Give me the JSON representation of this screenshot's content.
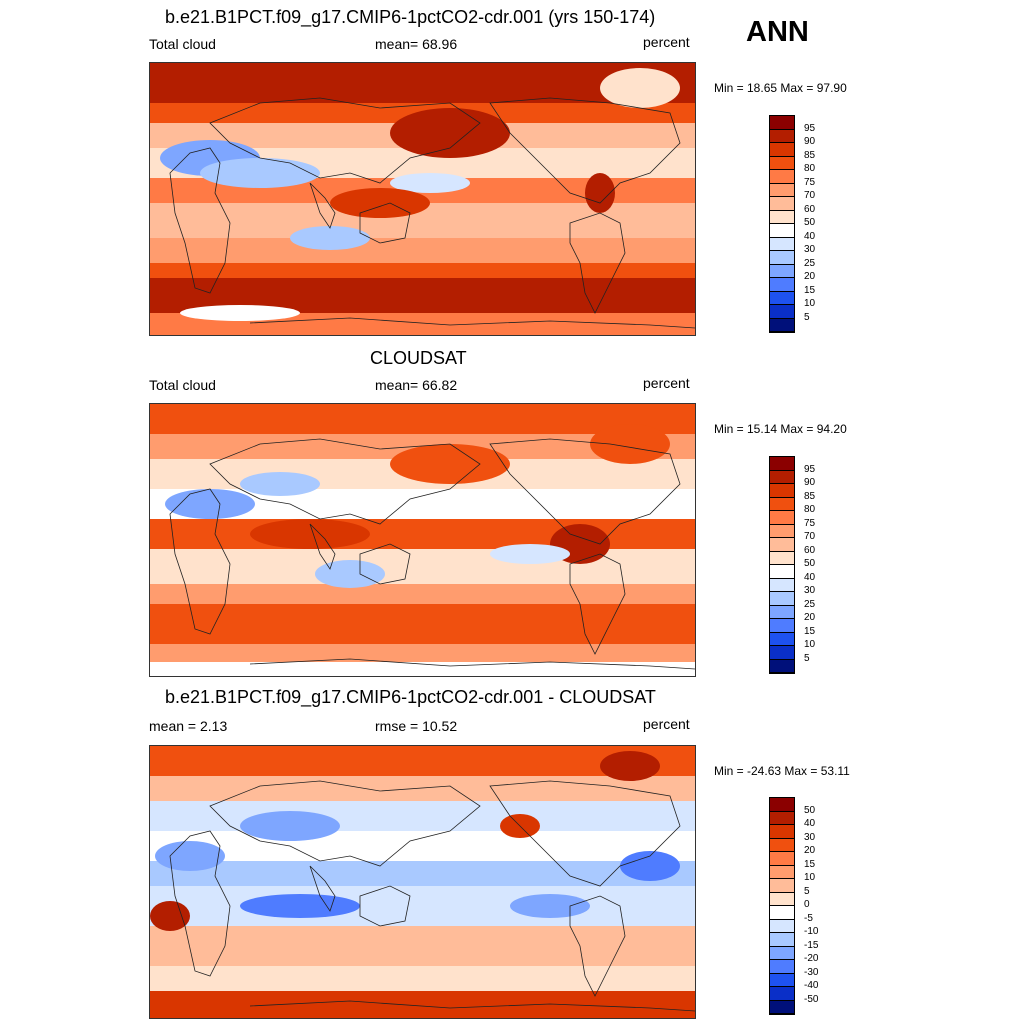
{
  "season": "ANN",
  "panels": [
    {
      "title": "b.e21.B1PCT.f09_g17.CMIP6-1pctCO2-cdr.001 (yrs 150-174)",
      "left_label": "Total cloud",
      "center_label": "mean=  68.96",
      "right_label": "percent",
      "minmax": "Min =  18.65 Max =  97.90",
      "colorbar": {
        "labels": [
          "95",
          "90",
          "85",
          "80",
          "75",
          "70",
          "60",
          "50",
          "40",
          "30",
          "25",
          "20",
          "15",
          "10",
          "5"
        ],
        "colors": [
          "#8b0000",
          "#b31e00",
          "#d93600",
          "#f0500f",
          "#ff7a45",
          "#ff9c6e",
          "#ffbc99",
          "#ffe2cc",
          "#ffffff",
          "#d6e6ff",
          "#a9c9ff",
          "#7ea6ff",
          "#4f7cff",
          "#1e52f0",
          "#0a2fc8",
          "#00107a"
        ]
      },
      "map_type": "model"
    },
    {
      "title": "CLOUDSAT",
      "left_label": "Total cloud",
      "center_label": "mean=  66.82",
      "right_label": "percent",
      "minmax": "Min =  15.14 Max =  94.20",
      "colorbar": {
        "labels": [
          "95",
          "90",
          "85",
          "80",
          "75",
          "70",
          "60",
          "50",
          "40",
          "30",
          "25",
          "20",
          "15",
          "10",
          "5"
        ],
        "colors": [
          "#8b0000",
          "#b31e00",
          "#d93600",
          "#f0500f",
          "#ff7a45",
          "#ff9c6e",
          "#ffbc99",
          "#ffe2cc",
          "#ffffff",
          "#d6e6ff",
          "#a9c9ff",
          "#7ea6ff",
          "#4f7cff",
          "#1e52f0",
          "#0a2fc8",
          "#00107a"
        ]
      },
      "map_type": "obs"
    },
    {
      "title": "b.e21.B1PCT.f09_g17.CMIP6-1pctCO2-cdr.001 - CLOUDSAT",
      "left_label": "mean =   2.13",
      "center_label": "rmse =  10.52",
      "right_label": "percent",
      "minmax": "Min = -24.63 Max =  53.11",
      "colorbar": {
        "labels": [
          "50",
          "40",
          "30",
          "20",
          "15",
          "10",
          "5",
          "0",
          "-5",
          "-10",
          "-15",
          "-20",
          "-30",
          "-40",
          "-50"
        ],
        "colors": [
          "#8b0000",
          "#b31e00",
          "#d93600",
          "#f0500f",
          "#ff7a45",
          "#ff9c6e",
          "#ffbc99",
          "#ffe2cc",
          "#ffffff",
          "#d6e6ff",
          "#a9c9ff",
          "#7ea6ff",
          "#4f7cff",
          "#1e52f0",
          "#0a2fc8",
          "#00107a"
        ]
      },
      "map_type": "diff"
    }
  ]
}
